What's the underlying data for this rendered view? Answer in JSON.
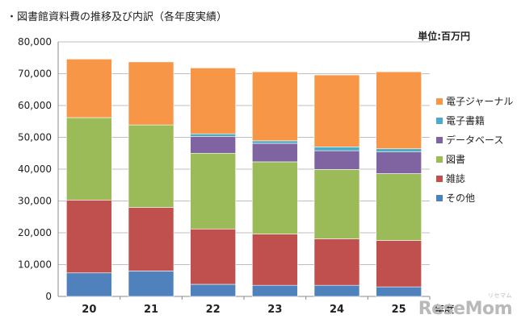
{
  "header": {
    "title": "・図書館資料費の推移及び内訳（各年度実績）",
    "unit": "単位:百万円"
  },
  "watermark": {
    "logo_text": "ReseMom",
    "sub_text": "リセマム"
  },
  "colors": {
    "その他": "#4f81bd",
    "雑誌": "#c0504d",
    "図書": "#9bbb59",
    "データベース": "#8064a2",
    "電子書籍": "#4bacc6",
    "電子ジャーナル": "#f79646"
  },
  "chart_data": {
    "type": "bar",
    "stacked": true,
    "title": "",
    "xlabel": "年度",
    "ylabel": "",
    "ylim": [
      0,
      80000
    ],
    "yticks": [
      "0",
      "10,000",
      "20,000",
      "30,000",
      "40,000",
      "50,000",
      "60,000",
      "70,000",
      "80,000"
    ],
    "yticks_values": [
      0,
      10000,
      20000,
      30000,
      40000,
      50000,
      60000,
      70000,
      80000
    ],
    "grid": true,
    "legend_position": "right",
    "categories": [
      "20",
      "21",
      "22",
      "23",
      "24",
      "25"
    ],
    "series": [
      {
        "name": "その他",
        "values": [
          7400,
          8000,
          3800,
          3500,
          3500,
          3000
        ]
      },
      {
        "name": "雑誌",
        "values": [
          22900,
          20000,
          17400,
          16100,
          14600,
          14600
        ]
      },
      {
        "name": "図書",
        "values": [
          25900,
          25900,
          23800,
          22700,
          21800,
          21000
        ]
      },
      {
        "name": "データベース",
        "values": [
          0,
          0,
          5300,
          5800,
          5900,
          6800
        ]
      },
      {
        "name": "電子書籍",
        "values": [
          0,
          0,
          800,
          800,
          1200,
          1000
        ]
      },
      {
        "name": "電子ジャーナル",
        "values": [
          18400,
          19800,
          20700,
          21700,
          22600,
          24200
        ]
      }
    ]
  }
}
